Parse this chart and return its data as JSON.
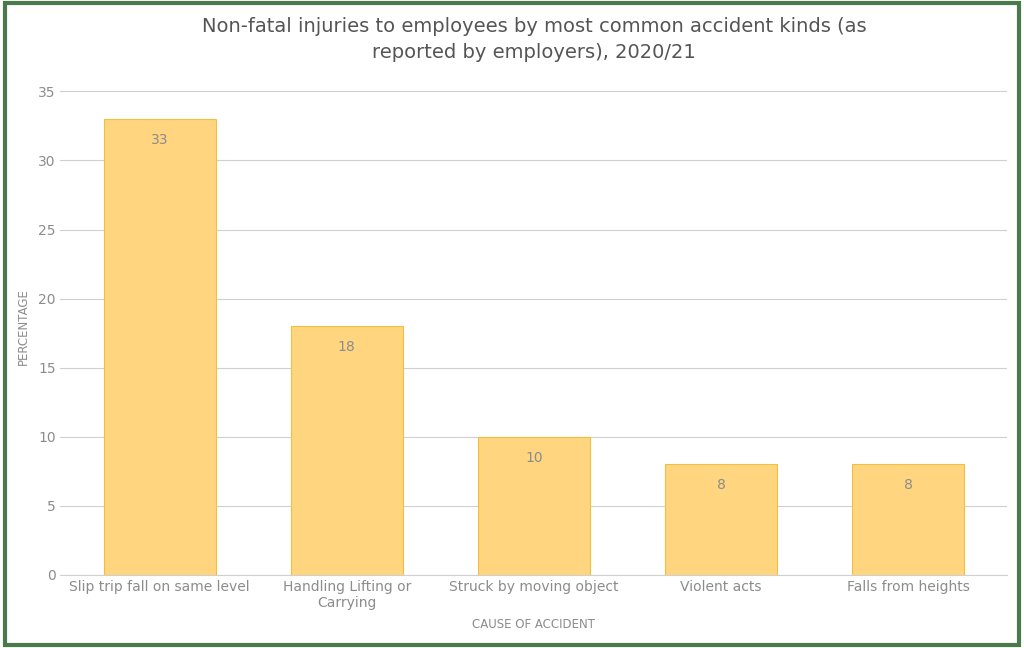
{
  "title": "Non-fatal injuries to employees by most common accident kinds (as\nreported by employers), 2020/21",
  "categories": [
    "Slip trip fall on same level",
    "Handling Lifting or\nCarrying",
    "Struck by moving object",
    "Violent acts",
    "Falls from heights"
  ],
  "values": [
    33,
    18,
    10,
    8,
    8
  ],
  "bar_color": "#FFD580",
  "bar_edgecolor": "#F0C040",
  "xlabel": "CAUSE OF ACCIDENT",
  "ylabel": "PERCENTAGE",
  "ylim": [
    0,
    36
  ],
  "yticks": [
    0,
    5,
    10,
    15,
    20,
    25,
    30,
    35
  ],
  "label_color": "#8c8c8c",
  "title_fontsize": 14,
  "axis_label_fontsize": 8.5,
  "tick_label_fontsize": 10,
  "value_label_fontsize": 10,
  "background_color": "#ffffff",
  "grid_color": "#d0d0d0",
  "border_color": "#4a7a4a",
  "border_linewidth": 3
}
